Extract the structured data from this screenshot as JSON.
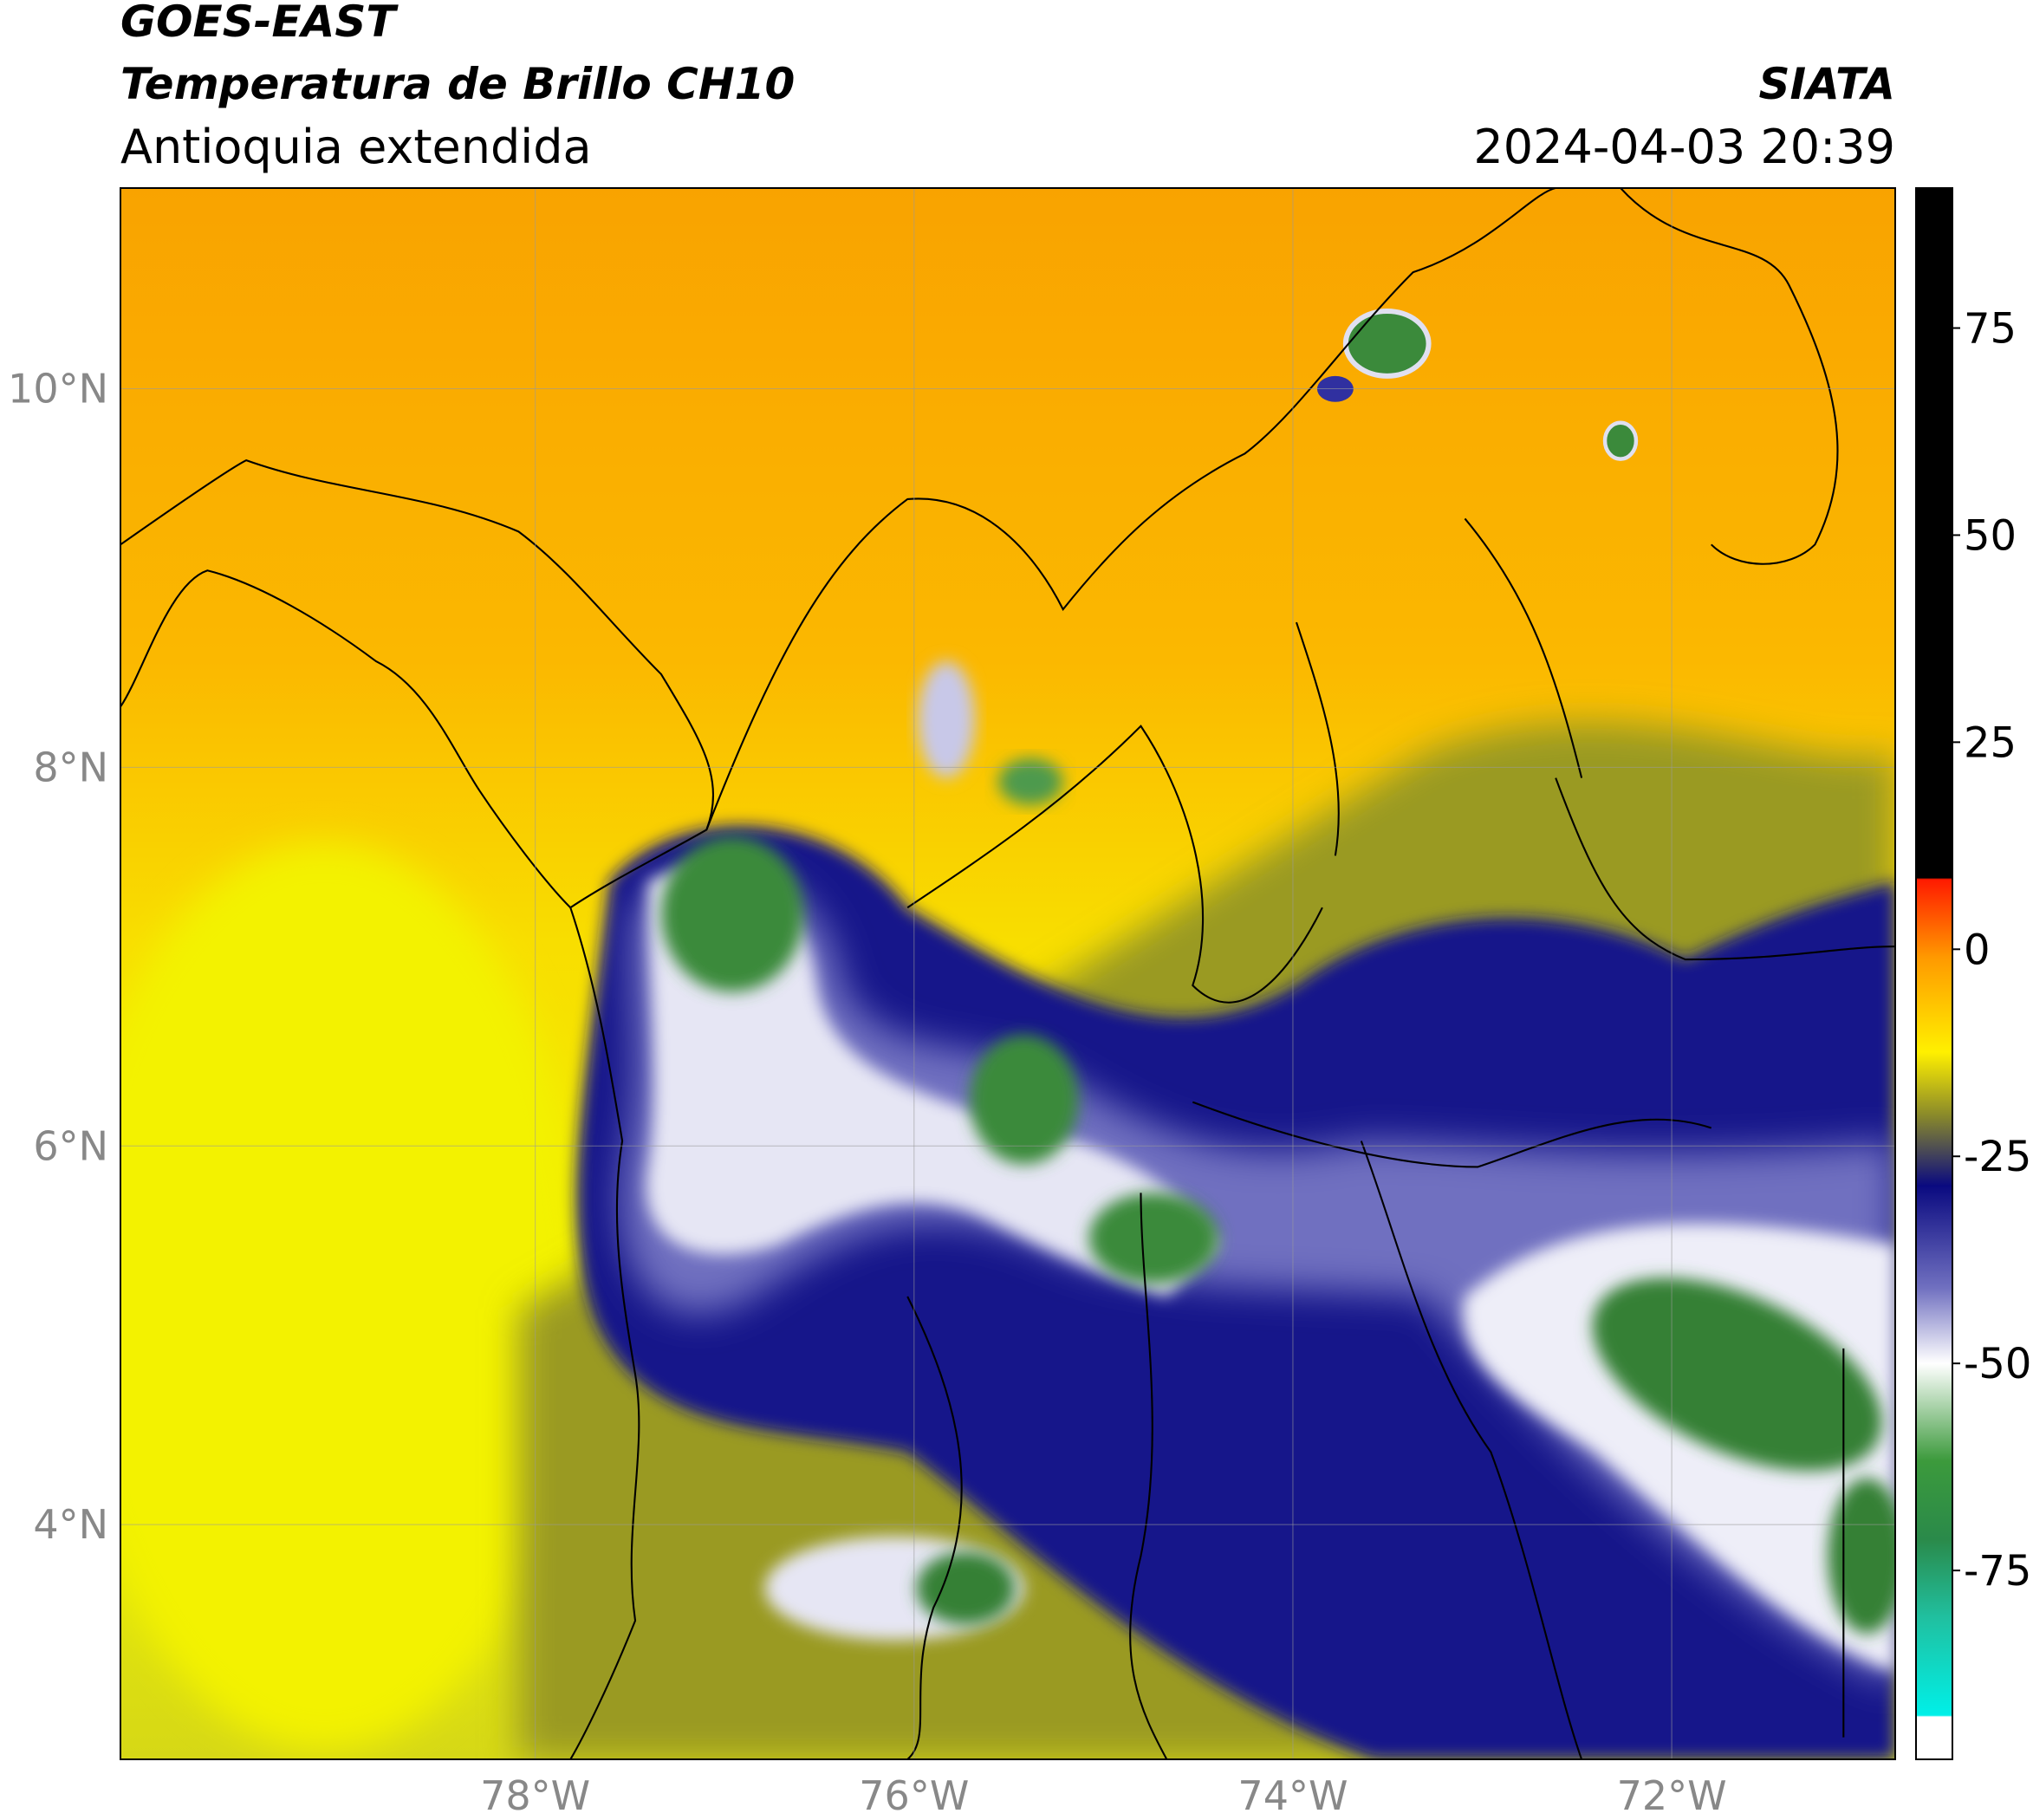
{
  "header": {
    "title": "GOES-EAST",
    "subtitle": "Temperatura de Brillo CH10",
    "region": "Antioquia extendida",
    "source": "SIATA",
    "datetime": "2024-04-03 20:39"
  },
  "map": {
    "lonlim": [
      -80.19,
      -70.82
    ],
    "latlim": [
      2.76,
      11.06
    ],
    "lonticks": [
      {
        "value": -78,
        "label": "78°W"
      },
      {
        "value": -76,
        "label": "76°W"
      },
      {
        "value": -74,
        "label": "74°W"
      },
      {
        "value": -72,
        "label": "72°W"
      }
    ],
    "latticks": [
      {
        "value": 4,
        "label": "4°N"
      },
      {
        "value": 6,
        "label": "6°N"
      },
      {
        "value": 8,
        "label": "8°N"
      },
      {
        "value": 10,
        "label": "10°N"
      }
    ],
    "grid": true
  },
  "colorbar": {
    "lim": [
      -97.8,
      91.9
    ],
    "ticks": [
      -75,
      -50,
      -25,
      0,
      25,
      50,
      75
    ]
  }
}
